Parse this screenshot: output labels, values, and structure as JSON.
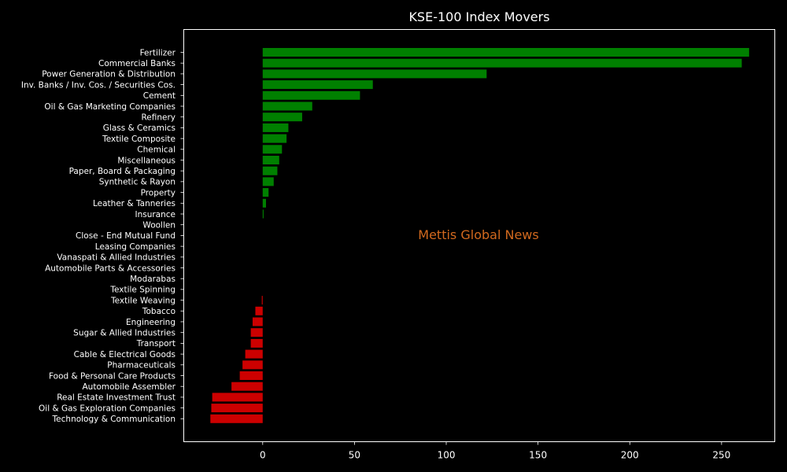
{
  "chart_data": {
    "type": "bar",
    "orientation": "horizontal",
    "title": "KSE-100 Index Movers",
    "xlabel": "",
    "ylabel": "",
    "xlim": [
      -43,
      279
    ],
    "xticks": [
      0,
      50,
      100,
      150,
      200,
      250
    ],
    "grid": false,
    "annotation": "Mettis Global News",
    "colors": {
      "positive": "#008000",
      "negative": "#cc0000",
      "background": "#000000",
      "text": "#ffffff",
      "annotation": "#d2691e"
    },
    "categories": [
      "Fertilizer",
      "Commercial Banks",
      "Power Generation & Distribution",
      "Inv. Banks / Inv. Cos. / Securities Cos.",
      "Cement",
      "Oil & Gas Marketing Companies",
      "Refinery",
      "Glass & Ceramics",
      "Textile Composite",
      "Chemical",
      "Miscellaneous",
      "Paper, Board & Packaging",
      "Synthetic & Rayon",
      "Property",
      "Leather & Tanneries",
      "Insurance",
      "Woollen",
      "Close - End Mutual Fund",
      "Leasing Companies",
      "Vanaspati & Allied Industries",
      "Automobile Parts & Accessories",
      "Modarabas",
      "Textile Spinning",
      "Textile Weaving",
      "Tobacco",
      "Engineering",
      "Sugar & Allied Industries",
      "Transport",
      "Cable & Electrical Goods",
      "Pharmaceuticals",
      "Food & Personal Care Products",
      "Automobile Assembler",
      "Real Estate Investment Trust",
      "Oil & Gas Exploration Companies",
      "Technology & Communication"
    ],
    "values": [
      265,
      261,
      122,
      60,
      53,
      27,
      21.5,
      14,
      13,
      10.5,
      9,
      8,
      6,
      3.2,
      1.8,
      0.5,
      0,
      0,
      0,
      0,
      0,
      0,
      0,
      -0.5,
      -4,
      -5.5,
      -6.5,
      -6.5,
      -9.5,
      -11,
      -12.5,
      -17,
      -27.5,
      -28,
      -28.5
    ]
  }
}
